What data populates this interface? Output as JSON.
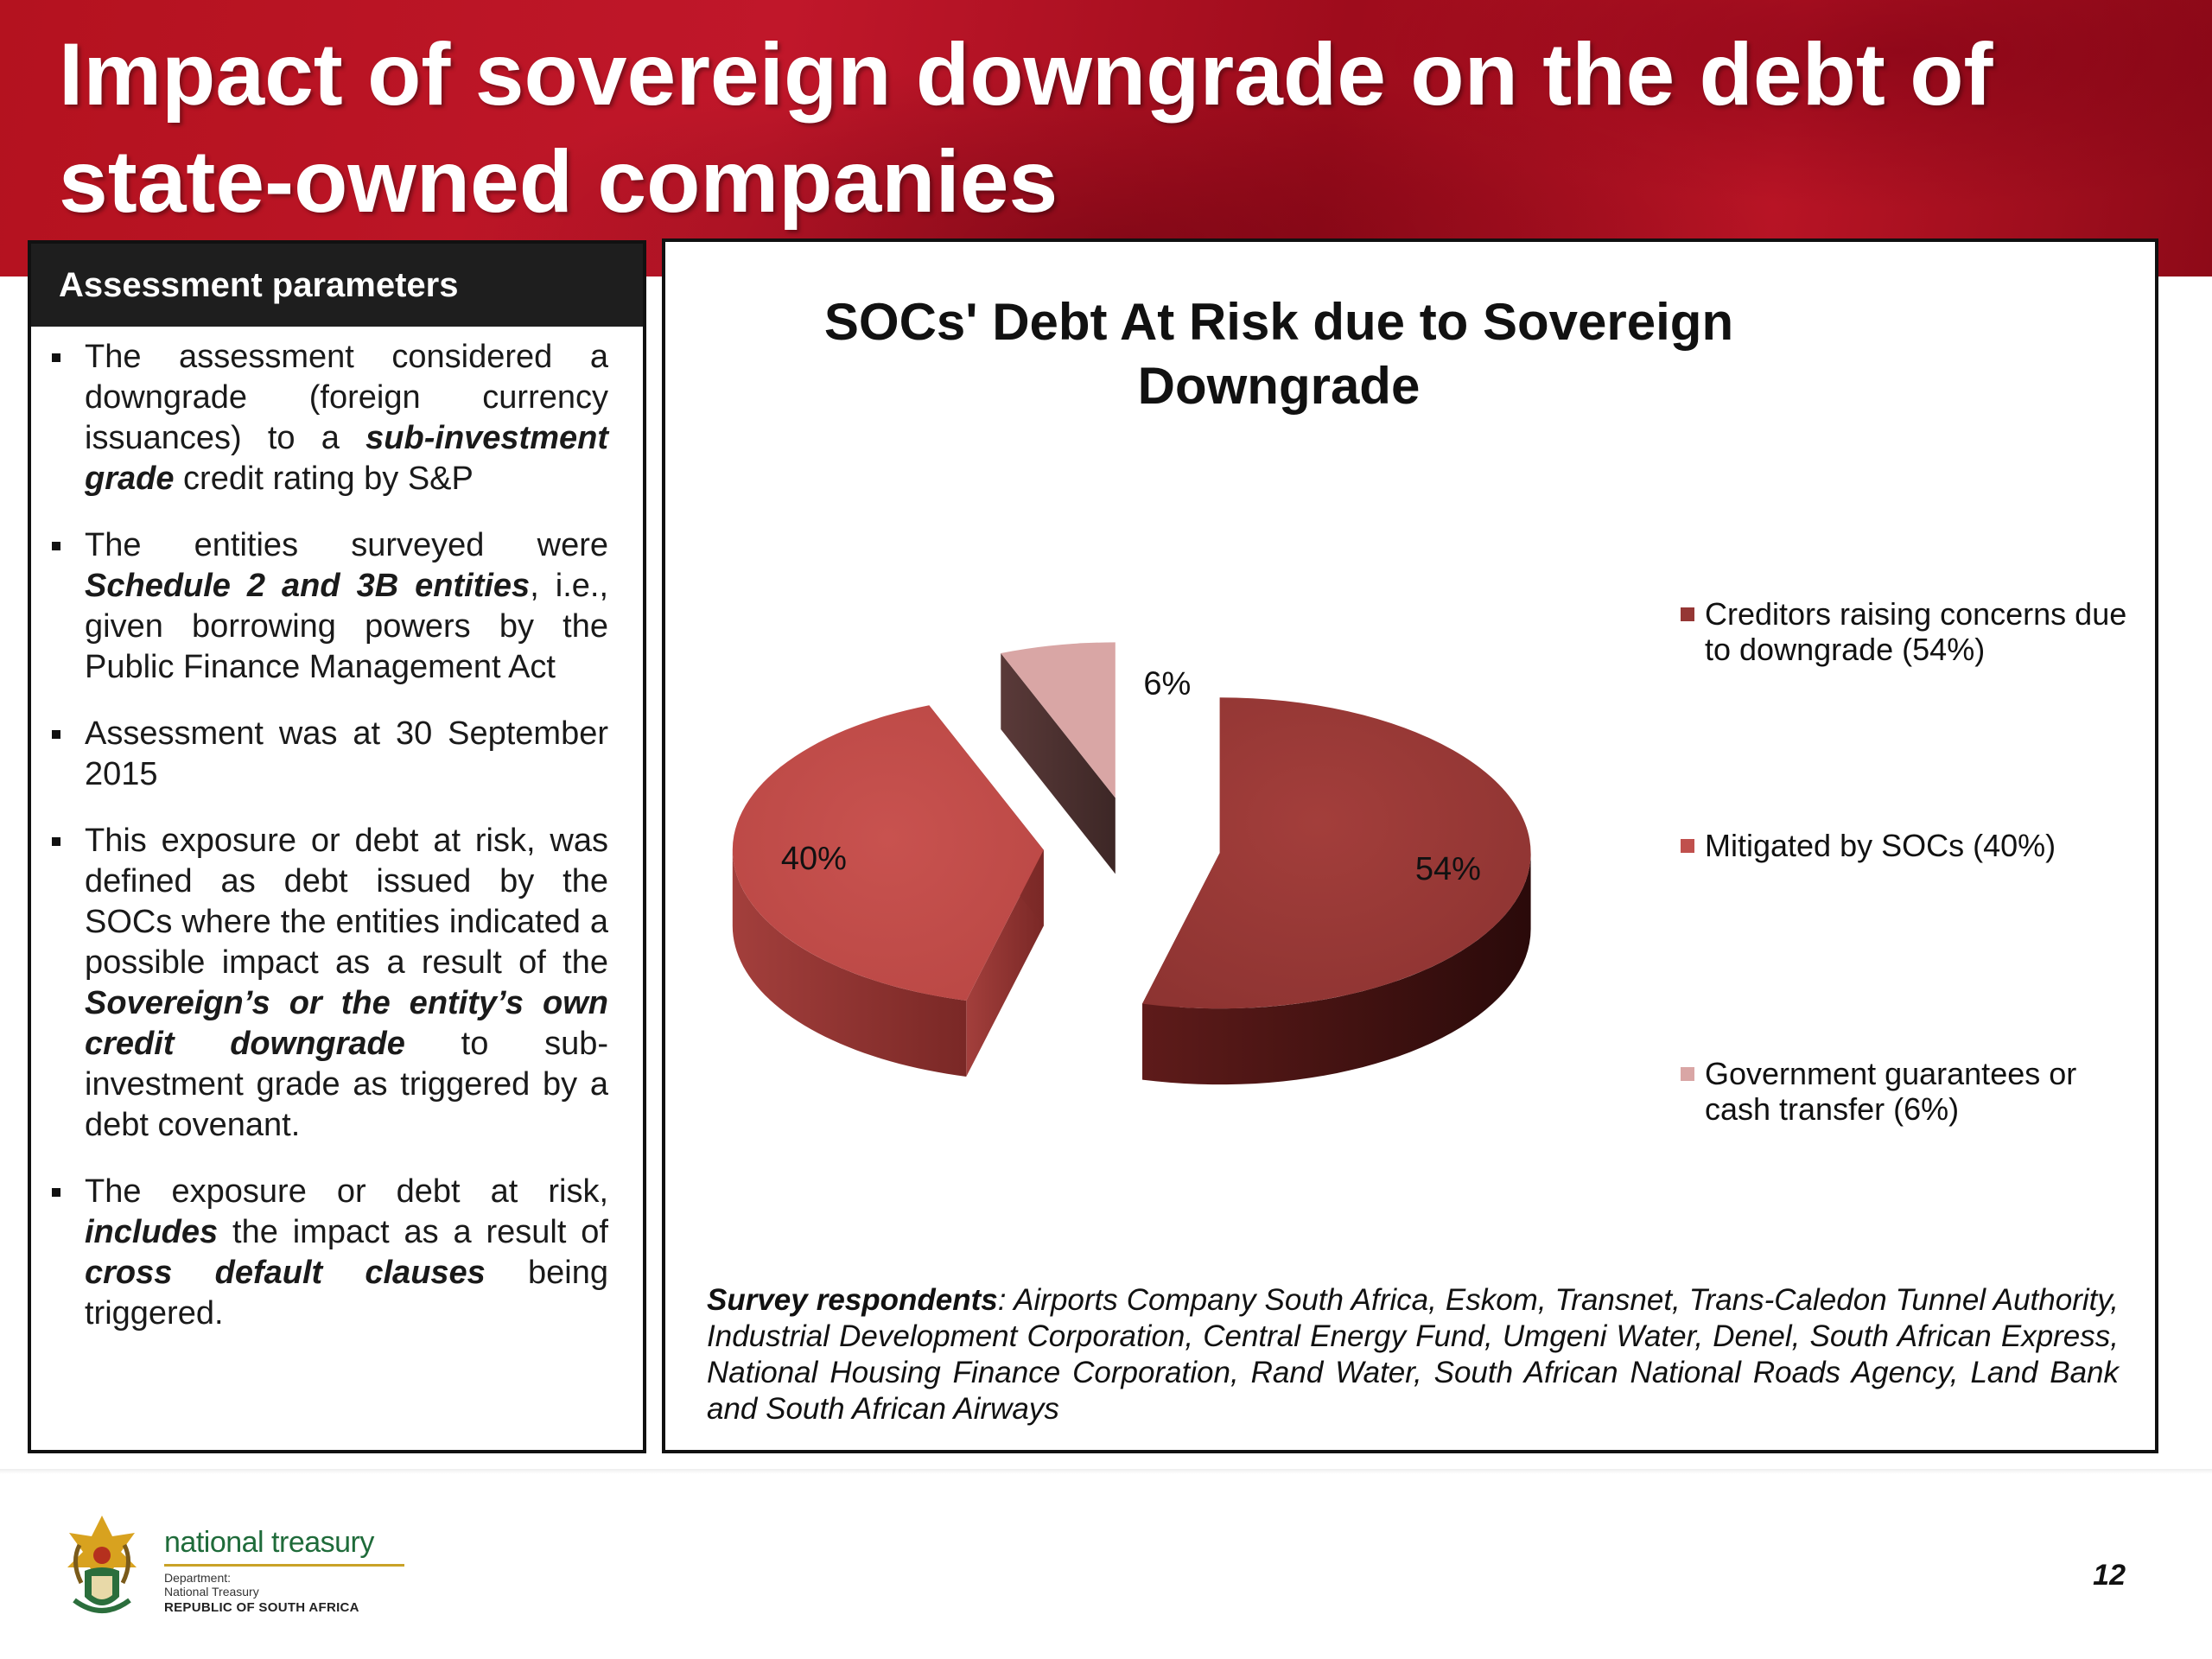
{
  "slide": {
    "title": "Impact of sovereign downgrade on the debt of state-owned companies",
    "page_number": "12"
  },
  "left_panel": {
    "header": "Assessment parameters",
    "bullets": [
      {
        "parts": [
          {
            "text": "The assessment considered a downgrade (foreign currency issuances) to a ",
            "emph": false
          },
          {
            "text": "sub-investment grade",
            "emph": true
          },
          {
            "text": " credit rating by S&P",
            "emph": false
          }
        ]
      },
      {
        "parts": [
          {
            "text": "The entities surveyed were ",
            "emph": false
          },
          {
            "text": "Schedule 2 and 3B entities",
            "emph": true
          },
          {
            "text": ", i.e., given borrowing powers by the Public Finance Management Act",
            "emph": false
          }
        ]
      },
      {
        "parts": [
          {
            "text": "Assessment was at 30 September 2015",
            "emph": false
          }
        ]
      },
      {
        "parts": [
          {
            "text": "This exposure or debt at risk, was defined as debt  issued by the SOCs where the entities indicated a possible impact as a result of the ",
            "emph": false
          },
          {
            "text": "Sovereign’s or the entity’s own credit downgrade",
            "emph": true
          },
          {
            "text": " to sub-investment grade as triggered by a debt covenant.",
            "emph": false
          }
        ]
      },
      {
        "parts": [
          {
            "text": "The exposure or debt at risk, ",
            "emph": false
          },
          {
            "text": "includes",
            "emph": true
          },
          {
            "text": " the impact as a result of ",
            "emph": false
          },
          {
            "text": "cross default clauses",
            "emph": true
          },
          {
            "text": " being triggered.",
            "emph": false
          }
        ]
      }
    ]
  },
  "chart_data": {
    "type": "pie",
    "title": "SOCs' Debt At Risk due to Sovereign Downgrade",
    "exploded": true,
    "three_d": true,
    "legend_position": "right",
    "slices": [
      {
        "name": "Creditors raising concerns due to downgrade (54%)",
        "value": 54,
        "label": "54%",
        "color": "#953735"
      },
      {
        "name": "Mitigated by SOCs (40%)",
        "value": 40,
        "label": "40%",
        "color": "#c0504d"
      },
      {
        "name": "Government guarantees or cash transfer (6%)",
        "value": 6,
        "label": "6%",
        "color": "#d9a6a5"
      }
    ]
  },
  "respondents": {
    "heading": "Survey respondents",
    "text": ": Airports Company South Africa, Eskom, Transnet, Trans-Caledon Tunnel Authority, Industrial Development Corporation, Central Energy Fund, Umgeni Water, Denel, South African Express, National Housing Finance Corporation, Rand Water, South African National Roads Agency, Land Bank and South African Airways"
  },
  "footer": {
    "org_name": "national treasury",
    "dept_lines": [
      "Department:",
      "National Treasury"
    ],
    "country": "REPUBLIC OF SOUTH AFRICA"
  },
  "colors": {
    "banner_red": "#b4121f",
    "panel_header": "#1e1e1e",
    "logo_green": "#1f6b3a"
  }
}
